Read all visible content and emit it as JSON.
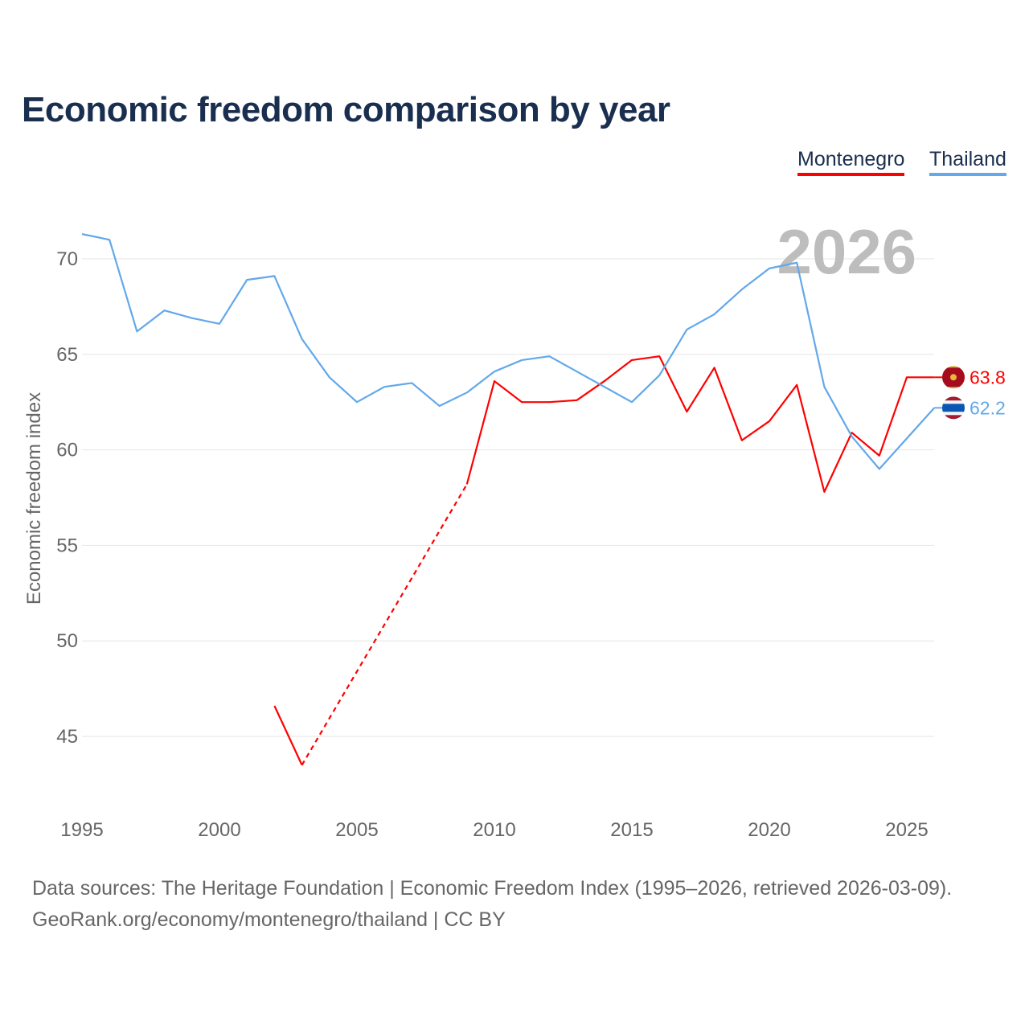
{
  "title": "Economic freedom comparison by year",
  "source_lines": [
    "Data sources: The Heritage Foundation | Economic Freedom Index (1995–2026, retrieved 2026-03-09).",
    "GeoRank.org/economy/montenegro/thailand | CC BY"
  ],
  "chart_data": {
    "type": "line",
    "title": "Economic freedom comparison by year",
    "xlabel": "",
    "ylabel": "Economic freedom index",
    "year_watermark": "2026",
    "x": [
      1995,
      1996,
      1997,
      1998,
      1999,
      2000,
      2001,
      2002,
      2003,
      2004,
      2005,
      2006,
      2007,
      2008,
      2009,
      2010,
      2011,
      2012,
      2013,
      2014,
      2015,
      2016,
      2017,
      2018,
      2019,
      2020,
      2021,
      2022,
      2023,
      2024,
      2025,
      2026
    ],
    "xlim": [
      1995,
      2026
    ],
    "ylim": [
      41.5,
      72
    ],
    "xticks": [
      1995,
      2000,
      2005,
      2010,
      2015,
      2020,
      2025
    ],
    "yticks": [
      45,
      50,
      55,
      60,
      65,
      70
    ],
    "grid": true,
    "legend_position": "top-right",
    "series": [
      {
        "name": "Montenegro",
        "color": "#ff0000",
        "end_label": "63.8",
        "flag": "montenegro-flag",
        "values": [
          null,
          null,
          null,
          null,
          null,
          null,
          null,
          46.6,
          43.5,
          null,
          null,
          null,
          null,
          null,
          58.2,
          63.6,
          62.5,
          62.5,
          62.6,
          63.6,
          64.7,
          64.9,
          62.0,
          64.3,
          60.5,
          61.5,
          63.4,
          57.8,
          60.9,
          59.7,
          63.8,
          63.8
        ]
      },
      {
        "name": "Thailand",
        "color": "#62a8ea",
        "end_label": "62.2",
        "flag": "thailand-flag",
        "values": [
          71.3,
          71.0,
          66.2,
          67.3,
          66.9,
          66.6,
          68.9,
          69.1,
          65.8,
          63.8,
          62.5,
          63.3,
          63.5,
          62.3,
          63.0,
          64.1,
          64.7,
          64.9,
          64.1,
          63.3,
          62.5,
          63.9,
          66.3,
          67.1,
          68.4,
          69.5,
          69.8,
          63.3,
          60.7,
          59.0,
          60.6,
          62.2
        ]
      }
    ]
  }
}
